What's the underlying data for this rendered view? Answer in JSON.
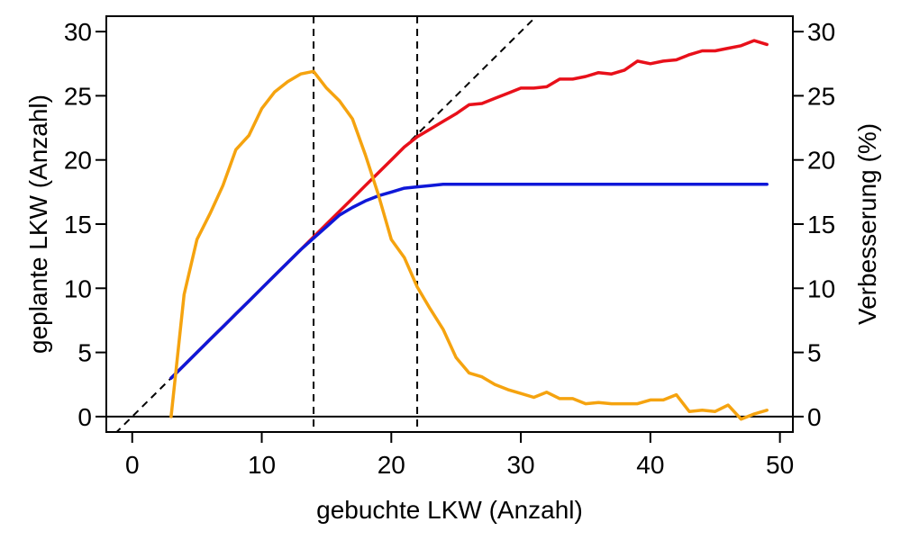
{
  "chart_data": {
    "type": "line",
    "xlabel": "gebuchte LKW (Anzahl)",
    "ylabel": "geplante LKW (Anzahl)",
    "y2label": "Verbesserung (%)",
    "xlim": [
      -2,
      51
    ],
    "ylim": [
      -1.2,
      31.2
    ],
    "y2lim": [
      -1.2,
      31.2
    ],
    "x_ticks": [
      0,
      10,
      20,
      30,
      40,
      50
    ],
    "y_ticks": [
      0,
      5,
      10,
      15,
      20,
      25,
      30
    ],
    "y2_ticks": [
      0,
      5,
      10,
      15,
      20,
      25,
      30
    ],
    "reference_lines": {
      "vertical": [
        14,
        22
      ],
      "horizontal": [
        0
      ],
      "diagonal": {
        "slope": 1,
        "intercept": 0,
        "x_from": -2,
        "x_to": 31.5
      }
    },
    "colors": {
      "red": "#e8101a",
      "blue": "#0f18d8",
      "orange": "#f5a30f",
      "reference": "#000000"
    },
    "series": [
      {
        "key": "red",
        "axis": "left",
        "x": [
          3,
          4,
          5,
          6,
          7,
          8,
          9,
          10,
          11,
          12,
          13,
          14,
          15,
          16,
          17,
          18,
          19,
          20,
          21,
          22,
          23,
          24,
          25,
          26,
          27,
          28,
          29,
          30,
          31,
          32,
          33,
          34,
          35,
          36,
          37,
          38,
          39,
          40,
          41,
          42,
          43,
          44,
          45,
          46,
          47,
          48,
          49
        ],
        "values": [
          3,
          4,
          5,
          6,
          7,
          8,
          9,
          10,
          11,
          12,
          13,
          14,
          15,
          16,
          17,
          18,
          19,
          20,
          21,
          21.8,
          22.4,
          23.0,
          23.6,
          24.3,
          24.4,
          24.8,
          25.2,
          25.6,
          25.6,
          25.7,
          26.3,
          26.3,
          26.5,
          26.8,
          26.7,
          27.0,
          27.7,
          27.5,
          27.7,
          27.8,
          28.2,
          28.5,
          28.5,
          28.7,
          28.9,
          29.3,
          29.0
        ]
      },
      {
        "key": "blue",
        "axis": "left",
        "x": [
          3,
          4,
          5,
          6,
          7,
          8,
          9,
          10,
          11,
          12,
          13,
          14,
          15,
          16,
          17,
          18,
          19,
          20,
          21,
          22,
          23,
          24,
          25,
          26,
          27,
          28,
          29,
          30,
          31,
          32,
          33,
          34,
          35,
          36,
          37,
          38,
          39,
          40,
          41,
          42,
          43,
          44,
          45,
          46,
          47,
          48,
          49
        ],
        "values": [
          3,
          4,
          5,
          6,
          7,
          8,
          9,
          10,
          11,
          12,
          13,
          13.9,
          14.8,
          15.7,
          16.3,
          16.8,
          17.2,
          17.5,
          17.8,
          17.9,
          18.0,
          18.1,
          18.1,
          18.1,
          18.1,
          18.1,
          18.1,
          18.1,
          18.1,
          18.1,
          18.1,
          18.1,
          18.1,
          18.1,
          18.1,
          18.1,
          18.1,
          18.1,
          18.1,
          18.1,
          18.1,
          18.1,
          18.1,
          18.1,
          18.1,
          18.1,
          18.1
        ]
      },
      {
        "key": "orange",
        "axis": "right",
        "x": [
          3,
          4,
          5,
          6,
          7,
          8,
          9,
          10,
          11,
          12,
          13,
          14,
          15,
          16,
          17,
          18,
          19,
          20,
          21,
          22,
          23,
          24,
          25,
          26,
          27,
          28,
          29,
          30,
          31,
          32,
          33,
          34,
          35,
          36,
          37,
          38,
          39,
          40,
          41,
          42,
          43,
          44,
          45,
          46,
          47,
          48,
          49
        ],
        "values": [
          0,
          9.5,
          13.8,
          15.8,
          18.0,
          20.8,
          21.9,
          24.0,
          25.3,
          26.1,
          26.7,
          26.9,
          25.6,
          24.6,
          23.2,
          20.4,
          17.3,
          13.8,
          12.4,
          10.1,
          8.4,
          6.8,
          4.6,
          3.4,
          3.1,
          2.5,
          2.1,
          1.8,
          1.5,
          1.9,
          1.4,
          1.4,
          1.0,
          1.1,
          1.0,
          1.0,
          1.0,
          1.3,
          1.3,
          1.7,
          0.4,
          0.5,
          0.4,
          0.9,
          -0.2,
          0.2,
          0.5
        ]
      }
    ]
  }
}
